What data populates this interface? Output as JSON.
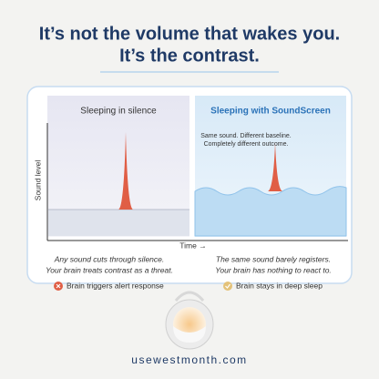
{
  "header": {
    "title_lines": [
      "It’s not the volume that wakes you.",
      "It’s the contrast."
    ]
  },
  "illustration": {
    "y_axis_label": "Sound level",
    "x_axis_label": "Time →",
    "center_note": [
      "Same sound. Different baseline.",
      "Completely different outcome."
    ],
    "panels": [
      {
        "title": "Sleeping in silence",
        "caption": [
          "Any sound cuts through silence.",
          "Your brain treats contrast as a threat."
        ],
        "outcome": "Brain triggers alert response"
      },
      {
        "title": "Sleeping with SoundScreen",
        "caption": [
          "The same sound barely registers.",
          "Your brain has nothing to react to."
        ],
        "outcome": "Brain stays in deep sleep"
      }
    ]
  },
  "footer": {
    "url": "usewestmonth.com"
  }
}
